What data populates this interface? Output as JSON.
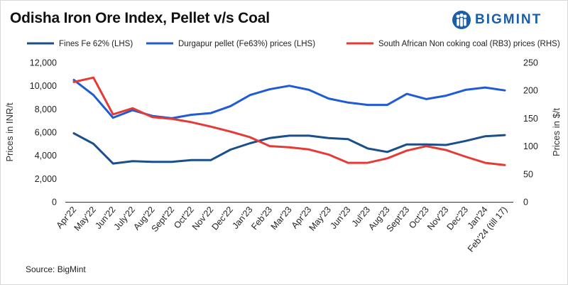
{
  "title": "Odisha Iron Ore Index, Pellet v/s Coal",
  "brand": {
    "name": "BIGMINT",
    "icon": "bigmint-people-logo-icon"
  },
  "source": "Source: BigMint",
  "colors": {
    "fines": "#1b4f8c",
    "pellet": "#1f5bd6",
    "coal": "#e53a35",
    "axis": "#333333",
    "brand": "#1a5ea8"
  },
  "chart_data": {
    "type": "line",
    "title": "Odisha Iron Ore Index, Pellet v/s Coal",
    "categories": [
      "Apr'22",
      "May'22",
      "Jun'22",
      "July'22",
      "Aug'22",
      "Sept'22",
      "Oct'22",
      "Nov'22",
      "Dec'22",
      "Jan'23",
      "Feb'23",
      "Mar'23",
      "Apr'23",
      "May'23",
      "Jun'23",
      "Jul'23",
      "Aug'23",
      "Sept'23",
      "Oct'23",
      "Nov'23",
      "Dec'23",
      "Jan'24",
      "Feb'24 (till 17)"
    ],
    "ylabel": "Prices in INR/t",
    "y2label": "Prices in $/t",
    "ylim": [
      0,
      12000
    ],
    "y2lim": [
      0,
      250
    ],
    "yticks": [
      "0",
      "2,000",
      "4,000",
      "6,000",
      "8,000",
      "10,000",
      "12,000"
    ],
    "y2ticks": [
      "0",
      "50",
      "100",
      "150",
      "200",
      "250"
    ],
    "legend_position": "top",
    "series": [
      {
        "name": "Fines Fe 62% (LHS)",
        "axis": "left",
        "color": "#1b4f8c",
        "values": [
          5900,
          5000,
          3300,
          3500,
          3450,
          3450,
          3600,
          3600,
          4500,
          5050,
          5500,
          5700,
          5700,
          5500,
          5400,
          4600,
          4300,
          4950,
          4950,
          4900,
          5250,
          5650,
          5750
        ]
      },
      {
        "name": "Durgapur pellet (Fe63%) prices (LHS)",
        "axis": "left",
        "color": "#1f5bd6",
        "values": [
          10500,
          9200,
          7250,
          7900,
          7400,
          7200,
          7500,
          7650,
          8250,
          9200,
          9700,
          10000,
          9650,
          8900,
          8550,
          8350,
          8350,
          9300,
          8850,
          9150,
          9650,
          9850,
          9600
        ]
      },
      {
        "name": "South African Non coking coal (RB3) prices (RHS)",
        "axis": "right",
        "color": "#e53a35",
        "values": [
          215,
          223,
          157,
          168,
          152,
          149,
          143,
          135,
          126,
          116,
          100,
          98,
          94,
          85,
          70,
          70,
          78,
          92,
          100,
          93,
          81,
          70,
          66
        ]
      }
    ]
  }
}
